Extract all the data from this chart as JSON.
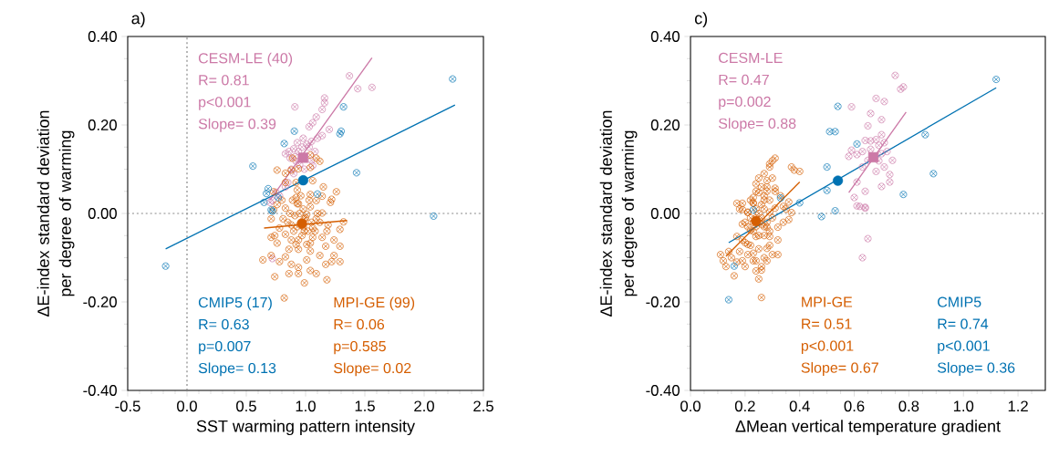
{
  "chart_data": [
    {
      "type": "scatter",
      "title": "a)",
      "xlabel": "SST warming pattern intensity",
      "ylabel": "ΔE-index standard deviation per degree of warming",
      "xlim": [
        -0.5,
        2.5
      ],
      "ylim": [
        -0.4,
        0.4
      ],
      "xticks": [
        {
          "value": -0.5,
          "label": "-0.5"
        },
        {
          "value": 0,
          "label": "0.0"
        },
        {
          "value": 0.5,
          "label": "0.5"
        },
        {
          "value": 1,
          "label": "1.0"
        },
        {
          "value": 1.5,
          "label": "1.5"
        },
        {
          "value": 2,
          "label": "2.0"
        },
        {
          "value": 2.5,
          "label": "2.5"
        },
        {
          "value": -0.4,
          "label": null
        },
        {
          "value": -0.3,
          "label": null
        },
        {
          "value": -0.2,
          "label": null
        },
        {
          "value": -0.1,
          "label": null
        },
        {
          "value": 0.1,
          "label": null
        },
        {
          "value": 0.2,
          "label": null
        },
        {
          "value": 0.3,
          "label": null
        },
        {
          "value": 0.4,
          "label": null
        },
        {
          "value": 0.6,
          "label": null
        },
        {
          "value": 0.7,
          "label": null
        },
        {
          "value": 0.8,
          "label": null
        },
        {
          "value": 0.9,
          "label": null
        },
        {
          "value": 1.1,
          "label": null
        },
        {
          "value": 1.2,
          "label": null
        },
        {
          "value": 1.3,
          "label": null
        },
        {
          "value": 1.4,
          "label": null
        },
        {
          "value": 1.6,
          "label": null
        },
        {
          "value": 1.7,
          "label": null
        },
        {
          "value": 1.8,
          "label": null
        },
        {
          "value": 1.9,
          "label": null
        },
        {
          "value": 2.1,
          "label": null
        },
        {
          "value": 2.2,
          "label": null
        },
        {
          "value": 2.3,
          "label": null
        },
        {
          "value": 2.4,
          "label": null
        }
      ],
      "yticks": [
        {
          "value": -0.4,
          "label": "-0.40"
        },
        {
          "value": -0.2,
          "label": "-0.20"
        },
        {
          "value": 0,
          "label": "0.00"
        },
        {
          "value": 0.2,
          "label": "0.20"
        },
        {
          "value": 0.4,
          "label": "0.40"
        },
        {
          "value": -0.35,
          "label": null
        },
        {
          "value": -0.3,
          "label": null
        },
        {
          "value": -0.25,
          "label": null
        },
        {
          "value": -0.15,
          "label": null
        },
        {
          "value": -0.1,
          "label": null
        },
        {
          "value": -0.05,
          "label": null
        },
        {
          "value": 0.05,
          "label": null
        },
        {
          "value": 0.1,
          "label": null
        },
        {
          "value": 0.15,
          "label": null
        },
        {
          "value": 0.25,
          "label": null
        },
        {
          "value": 0.3,
          "label": null
        },
        {
          "value": 0.35,
          "label": null
        }
      ],
      "ref_lines": [
        {
          "axis": "x",
          "value": 0,
          "color": "#888888",
          "line_style": "dotted"
        },
        {
          "axis": "y",
          "value": 0,
          "color": "#888888",
          "line_style": "dotted"
        }
      ],
      "series": [
        {
          "name": "CESM-LE (40)",
          "color": "#cc79a7",
          "marker": "cross",
          "x": [
            1.37,
            1.44,
            1.56,
            0.91,
            1.16,
            1.16,
            1.14,
            1.09,
            1.06,
            1.03,
            1.14,
            1.1,
            1.05,
            1.01,
            0.83,
            0.86,
            0.9,
            0.94,
            0.97,
            0.87,
            0.92,
            1.06,
            1.05,
            0.95,
            0.88,
            0.83,
            0.85,
            0.78,
            0.75,
            0.72,
            0.7,
            0.99,
            1.03,
            0.91,
            1.08,
            0.93,
            0.98,
            0.9,
            0.72,
            1.2
          ],
          "values": [
            0.311,
            0.282,
            0.285,
            0.241,
            0.261,
            0.25,
            0.235,
            0.218,
            0.205,
            0.196,
            0.176,
            0.17,
            0.163,
            0.156,
            0.135,
            0.14,
            0.146,
            0.14,
            0.15,
            0.125,
            0.118,
            0.108,
            0.12,
            0.11,
            0.1,
            0.06,
            0.07,
            0.04,
            0.048,
            0.03,
            0.025,
            0.1,
            0.15,
            0.128,
            0.14,
            0.16,
            0.17,
            0.09,
            -0.102,
            0.19
          ]
        },
        {
          "name": "MPI-GE (99)",
          "color": "#d55e00",
          "marker": "cross",
          "x": [
            0.92,
            0.93,
            0.92,
            0.93,
            1.06,
            1.04,
            1.09,
            1.14,
            1.21,
            1.26,
            1.22,
            0.76,
            0.83,
            0.73,
            1.04,
            1.09,
            1.12,
            1.04,
            0.94,
            0.88,
            0.83,
            0.89,
            0.74,
            0.76,
            0.86,
            0.94,
            0.83,
            0.64,
            0.71,
            0.78,
            0.88,
            0.94,
            0.94,
            1.01,
            1.04,
            1.12,
            1.17,
            1.22,
            1.29,
            1.18,
            0.74,
            0.82,
            1.14,
            1.24,
            1.29,
            1.32,
            1.19,
            1.09,
            1.04,
            0.94,
            0.83,
            0.73,
            0.71,
            0.81,
            0.88,
            0.99,
            1.06,
            1.14,
            1.01,
            0.91,
            0.78,
            0.83,
            0.99,
            1.06,
            0.94,
            1.04,
            0.86,
            0.99,
            1.09,
            1.24,
            0.71,
            0.88,
            1.04,
            1.17,
            1.29,
            0.96,
            0.98,
            1.0,
            0.95,
            1.02,
            0.97,
            0.93,
            1.05,
            1.08,
            0.9,
            0.87,
            1.1,
            1.12,
            0.85,
            0.98,
            1.03,
            0.89,
            0.96,
            1.15,
            1.18,
            0.8,
            0.76,
            0.92,
            1.01
          ],
          "values": [
            0.07,
            0.053,
            0.036,
            0.022,
            0.074,
            0.043,
            0.029,
            0.039,
            0.025,
            0.049,
            0.032,
            0.098,
            0.07,
            0.049,
            0.132,
            0.125,
            0.118,
            0.104,
            0.101,
            0.098,
            0.091,
            0.125,
            -0.05,
            -0.067,
            -0.081,
            -0.06,
            -0.098,
            -0.105,
            -0.095,
            -0.109,
            -0.115,
            -0.122,
            -0.136,
            -0.105,
            -0.085,
            -0.095,
            -0.115,
            -0.109,
            -0.109,
            -0.15,
            -0.143,
            -0.191,
            -0.054,
            -0.06,
            -0.036,
            -0.019,
            -0.026,
            -0.012,
            0.015,
            0.022,
            0.012,
            0.008,
            -0.012,
            -0.012,
            -0.026,
            -0.04,
            -0.033,
            0.001,
            -0.002,
            -0.005,
            -0.033,
            -0.047,
            -0.012,
            -0.054,
            -0.081,
            -0.129,
            -0.136,
            -0.157,
            -0.136,
            -0.095,
            -0.054,
            -0.06,
            -0.067,
            -0.074,
            -0.074,
            -0.02,
            -0.03,
            -0.01,
            0.0,
            -0.04,
            -0.05,
            -0.03,
            -0.02,
            -0.04,
            -0.04,
            0.0,
            0.0,
            -0.02,
            -0.02,
            0.01,
            0.03,
            0.03,
            0.04,
            0.06,
            -0.04,
            0.03,
            0.02,
            -0.07,
            -0.07
          ]
        },
        {
          "name": "CMIP5 (17)",
          "color": "#0072b2",
          "marker": "cross",
          "x": [
            2.24,
            1.32,
            1.3,
            1.29,
            0.905,
            0.82,
            0.556,
            1.43,
            0.685,
            0.77,
            0.65,
            0.71,
            1.1,
            2.08,
            -0.18,
            0.72,
            0.67
          ],
          "values": [
            0.304,
            0.241,
            0.186,
            0.18,
            0.186,
            0.158,
            0.107,
            0.092,
            0.056,
            0.036,
            0.025,
            0.008,
            0.044,
            -0.006,
            -0.119,
            0.005,
            0.045
          ]
        },
        {
          "type": "line",
          "color": "#cc79a7",
          "line_style": "solid",
          "x": [
            0.7,
            1.56
          ],
          "values": [
            0.03,
            0.352
          ]
        },
        {
          "type": "line",
          "color": "#d55e00",
          "line_style": "solid",
          "x": [
            0.65,
            1.35
          ],
          "values": [
            -0.033,
            -0.016
          ]
        },
        {
          "type": "line",
          "color": "#0072b2",
          "line_style": "solid",
          "x": [
            -0.18,
            2.26
          ],
          "values": [
            -0.08,
            0.245
          ]
        },
        {
          "color": "#cc79a7",
          "marker": "square",
          "x": [
            0.98
          ],
          "values": [
            0.126
          ]
        },
        {
          "color": "#d55e00",
          "marker": "circle",
          "x": [
            0.97
          ],
          "values": [
            -0.023
          ]
        },
        {
          "color": "#0072b2",
          "marker": "circle",
          "x": [
            0.98
          ],
          "values": [
            0.075
          ]
        }
      ],
      "annotations": [
        "R= 0.81",
        "p<0.001",
        "Slope= 0.39",
        "R= 0.06",
        "p=0.585",
        "Slope= 0.02",
        "R= 0.63",
        "p=0.007",
        "Slope= 0.13"
      ]
    },
    {
      "type": "scatter",
      "title": "c)",
      "xlabel": "ΔMean vertical temperature gradient",
      "ylabel": "ΔE-index standard deviation per degree of warming",
      "xlim": [
        0,
        1.3
      ],
      "ylim": [
        -0.4,
        0.4
      ],
      "xticks": [
        {
          "value": 0,
          "label": "0.0"
        },
        {
          "value": 0.2,
          "label": "0.2"
        },
        {
          "value": 0.4,
          "label": "0.4"
        },
        {
          "value": 0.6,
          "label": "0.6"
        },
        {
          "value": 0.8,
          "label": "0.8"
        },
        {
          "value": 1,
          "label": "1.0"
        },
        {
          "value": 1.2,
          "label": "1.2"
        },
        {
          "value": 0.05,
          "label": null
        },
        {
          "value": 0.1,
          "label": null
        },
        {
          "value": 0.15,
          "label": null
        },
        {
          "value": 0.25,
          "label": null
        },
        {
          "value": 0.3,
          "label": null
        },
        {
          "value": 0.35,
          "label": null
        },
        {
          "value": 0.45,
          "label": null
        },
        {
          "value": 0.5,
          "label": null
        },
        {
          "value": 0.55,
          "label": null
        },
        {
          "value": 0.65,
          "label": null
        },
        {
          "value": 0.7,
          "label": null
        },
        {
          "value": 0.75,
          "label": null
        },
        {
          "value": 0.85,
          "label": null
        },
        {
          "value": 0.9,
          "label": null
        },
        {
          "value": 0.95,
          "label": null
        },
        {
          "value": 1.05,
          "label": null
        },
        {
          "value": 1.1,
          "label": null
        },
        {
          "value": 1.15,
          "label": null
        },
        {
          "value": 1.25,
          "label": null
        }
      ],
      "yticks": [
        {
          "value": -0.4,
          "label": "-0.40"
        },
        {
          "value": -0.2,
          "label": "-0.20"
        },
        {
          "value": 0,
          "label": "0.00"
        },
        {
          "value": 0.2,
          "label": "0.20"
        },
        {
          "value": 0.4,
          "label": "0.40"
        },
        {
          "value": -0.35,
          "label": null
        },
        {
          "value": -0.3,
          "label": null
        },
        {
          "value": -0.25,
          "label": null
        },
        {
          "value": -0.15,
          "label": null
        },
        {
          "value": -0.1,
          "label": null
        },
        {
          "value": -0.05,
          "label": null
        },
        {
          "value": 0.05,
          "label": null
        },
        {
          "value": 0.1,
          "label": null
        },
        {
          "value": 0.15,
          "label": null
        },
        {
          "value": 0.25,
          "label": null
        },
        {
          "value": 0.3,
          "label": null
        },
        {
          "value": 0.35,
          "label": null
        }
      ],
      "ref_lines": [
        {
          "axis": "y",
          "value": 0,
          "color": "#888888",
          "line_style": "dotted"
        }
      ],
      "series": [
        {
          "name": "CESM-LE",
          "color": "#cc79a7",
          "marker": "cross",
          "x": [
            0.75,
            0.77,
            0.78,
            0.68,
            0.71,
            0.59,
            0.66,
            0.7,
            0.65,
            0.7,
            0.58,
            0.61,
            0.59,
            0.66,
            0.68,
            0.69,
            0.71,
            0.63,
            0.69,
            0.71,
            0.68,
            0.73,
            0.73,
            0.7,
            0.63,
            0.61,
            0.64,
            0.6,
            0.62,
            0.64,
            0.61,
            0.64,
            0.65,
            0.63,
            0.64,
            0.7,
            0.66,
            0.72,
            0.65,
            0.74
          ],
          "values": [
            0.312,
            0.281,
            0.286,
            0.26,
            0.253,
            0.241,
            0.226,
            0.212,
            0.198,
            0.178,
            0.129,
            0.133,
            0.143,
            0.164,
            0.167,
            0.154,
            0.16,
            0.14,
            0.119,
            0.105,
            0.095,
            0.088,
            0.071,
            0.061,
            0.105,
            0.071,
            0.05,
            0.036,
            0.016,
            0.012,
            0.017,
            0.014,
            -0.057,
            -0.1,
            0.165,
            0.135,
            0.145,
            0.14,
            0.12,
            0.12
          ]
        },
        {
          "name": "MPI-GE",
          "color": "#d55e00",
          "marker": "cross",
          "x": [
            0.29,
            0.3,
            0.31,
            0.29,
            0.37,
            0.4,
            0.38,
            0.24,
            0.28,
            0.31,
            0.28,
            0.25,
            0.23,
            0.19,
            0.23,
            0.19,
            0.27,
            0.29,
            0.37,
            0.34,
            0.36,
            0.31,
            0.17,
            0.21,
            0.36,
            0.32,
            0.29,
            0.32,
            0.28,
            0.26,
            0.25,
            0.26,
            0.23,
            0.19,
            0.16,
            0.12,
            0.11,
            0.14,
            0.18,
            0.17,
            0.2,
            0.24,
            0.29,
            0.28,
            0.22,
            0.19,
            0.24,
            0.21,
            0.18,
            0.27,
            0.29,
            0.23,
            0.26,
            0.22,
            0.28,
            0.3,
            0.21,
            0.24,
            0.25,
            0.24,
            0.26,
            0.23,
            0.27,
            0.25,
            0.22,
            0.28,
            0.24,
            0.26,
            0.23,
            0.25,
            0.27,
            0.21,
            0.29,
            0.2,
            0.3,
            0.22,
            0.27,
            0.24,
            0.26,
            0.28,
            0.3,
            0.25,
            0.27,
            0.31,
            0.33,
            0.32,
            0.19,
            0.21,
            0.23,
            0.25,
            0.27,
            0.26,
            0.24,
            0.15,
            0.13,
            0.17,
            0.2,
            0.34,
            0.35
          ],
          "values": [
            0.112,
            0.119,
            0.125,
            0.105,
            0.105,
            0.095,
            0.098,
            0.067,
            0.074,
            0.057,
            0.05,
            0.047,
            0.036,
            0.023,
            0.023,
            0.009,
            0.03,
            0.03,
            0.002,
            0.016,
            0.026,
            0.012,
            0.023,
            0.002,
            -0.014,
            -0.031,
            -0.072,
            -0.093,
            -0.107,
            -0.128,
            -0.148,
            -0.19,
            -0.107,
            -0.107,
            -0.141,
            -0.107,
            -0.093,
            -0.086,
            -0.086,
            -0.052,
            -0.066,
            -0.052,
            -0.052,
            -0.031,
            -0.038,
            -0.024,
            -0.01,
            0.003,
            0.01,
            0.01,
            0.003,
            0.024,
            -0.024,
            -0.072,
            -0.079,
            -0.093,
            -0.093,
            -0.107,
            -0.02,
            -0.03,
            -0.01,
            -0.02,
            -0.03,
            0.0,
            -0.01,
            -0.02,
            0.01,
            0.02,
            -0.04,
            -0.05,
            -0.05,
            -0.03,
            -0.04,
            -0.02,
            -0.01,
            0.03,
            0.04,
            0.05,
            0.06,
            0.06,
            0.08,
            0.08,
            0.09,
            0.05,
            0.04,
            -0.06,
            -0.06,
            -0.07,
            -0.09,
            -0.08,
            -0.1,
            -0.12,
            -0.13,
            -0.1,
            -0.12,
            -0.11,
            -0.12,
            -0.02,
            0.01
          ]
        },
        {
          "name": "CMIP5",
          "color": "#0072b2",
          "marker": "cross",
          "x": [
            1.12,
            0.54,
            0.51,
            0.53,
            0.61,
            0.86,
            0.89,
            0.78,
            0.5,
            0.5,
            0.4,
            0.33,
            0.23,
            0.53,
            0.48,
            0.16,
            0.14
          ],
          "values": [
            0.303,
            0.242,
            0.185,
            0.185,
            0.157,
            0.178,
            0.09,
            0.043,
            0.105,
            0.052,
            0.024,
            0.035,
            0.008,
            0.006,
            -0.007,
            -0.119,
            -0.195
          ]
        },
        {
          "type": "line",
          "color": "#cc79a7",
          "line_style": "solid",
          "x": [
            0.58,
            0.79
          ],
          "values": [
            0.047,
            0.229
          ]
        },
        {
          "type": "line",
          "color": "#d55e00",
          "line_style": "solid",
          "x": [
            0.13,
            0.4
          ],
          "values": [
            -0.097,
            0.071
          ]
        },
        {
          "type": "line",
          "color": "#0072b2",
          "line_style": "solid",
          "x": [
            0.14,
            1.12
          ],
          "values": [
            -0.066,
            0.284
          ]
        },
        {
          "color": "#cc79a7",
          "marker": "square",
          "x": [
            0.67
          ],
          "values": [
            0.127
          ]
        },
        {
          "color": "#d55e00",
          "marker": "circle",
          "x": [
            0.24
          ],
          "values": [
            -0.017
          ]
        },
        {
          "color": "#0072b2",
          "marker": "circle",
          "x": [
            0.54
          ],
          "values": [
            0.074
          ]
        }
      ],
      "annotations": [
        "R= 0.47",
        "p=0.002",
        "Slope= 0.88",
        "R= 0.51",
        "p<0.001",
        "Slope= 0.67",
        "R= 0.74",
        "p<0.001",
        "Slope= 0.36"
      ]
    }
  ]
}
